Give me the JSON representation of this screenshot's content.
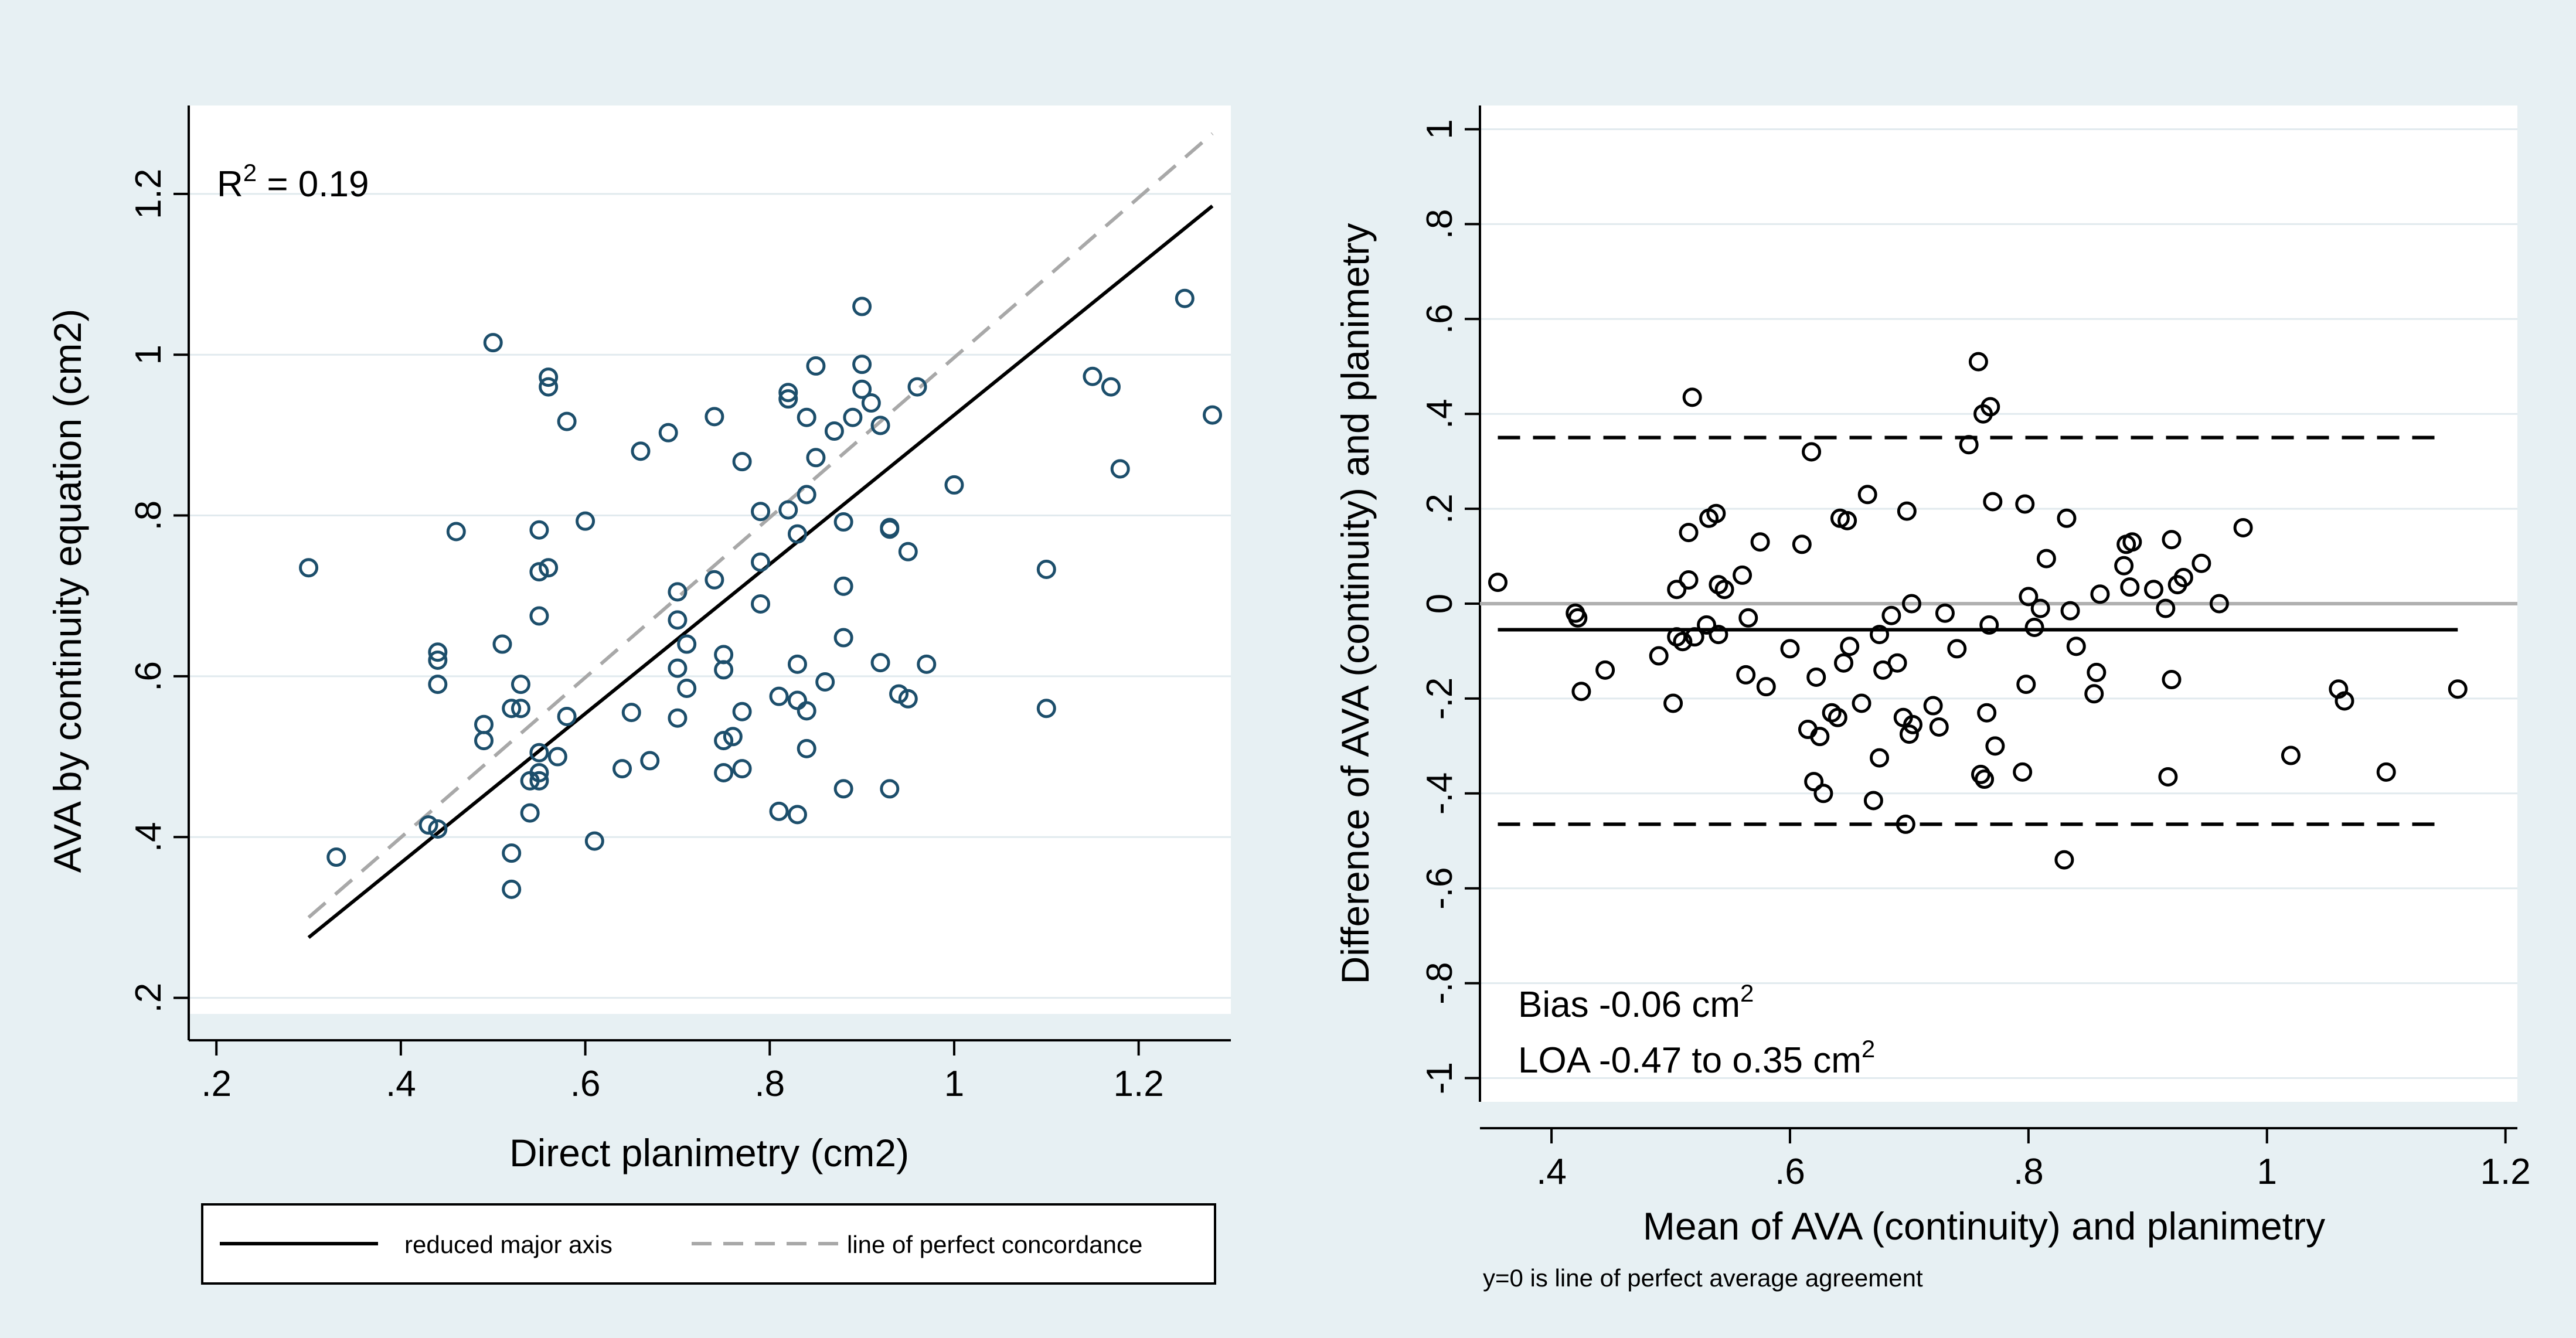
{
  "colors": {
    "outer_background": "#e7f0f3",
    "plot_background": "#ffffff",
    "grid": "#e1eaee",
    "left_marker": "#1c4e6b",
    "right_marker": "#000000",
    "perfect_line": "#a8a8a8",
    "zero_line": "#b0b0b0"
  },
  "chart_data": [
    {
      "type": "scatter",
      "title": "",
      "xlabel": "Direct planimetry (cm2)",
      "ylabel": "AVA by continuity equation (cm2)",
      "xlim": [
        0.17,
        1.3
      ],
      "ylim": [
        0.18,
        1.31
      ],
      "xticks": [
        0.2,
        0.4,
        0.6,
        0.8,
        1.0,
        1.2
      ],
      "xtick_labels": [
        ".2",
        ".4",
        ".6",
        ".8",
        "1",
        "1.2"
      ],
      "yticks": [
        0.2,
        0.4,
        0.6,
        0.8,
        1.0,
        1.2
      ],
      "ytick_labels": [
        ".2",
        ".4",
        ".6",
        ".8",
        "1",
        "1.2"
      ],
      "grid": true,
      "annotation": {
        "prefix": "R",
        "superscript": "2",
        "suffix": " = 0.19"
      },
      "lines": [
        {
          "name": "reduced major axis",
          "style": "solid",
          "color": "#000000",
          "x": [
            0.3,
            1.28
          ],
          "y": [
            0.275,
            1.185
          ]
        },
        {
          "name": "line of perfect concordance",
          "style": "dashed",
          "color": "#a8a8a8",
          "x": [
            0.3,
            1.28
          ],
          "y": [
            0.3,
            1.275
          ]
        }
      ],
      "legend": {
        "placement": "bottom",
        "entries": [
          "reduced major axis",
          "line of perfect concordance"
        ]
      },
      "points": [
        [
          0.3,
          0.735
        ],
        [
          0.33,
          0.375
        ],
        [
          0.43,
          0.415
        ],
        [
          0.44,
          0.41
        ],
        [
          0.44,
          0.59
        ],
        [
          0.44,
          0.62
        ],
        [
          0.44,
          0.63
        ],
        [
          0.46,
          0.78
        ],
        [
          0.49,
          0.54
        ],
        [
          0.49,
          0.52
        ],
        [
          0.5,
          1.015
        ],
        [
          0.51,
          0.64
        ],
        [
          0.52,
          0.38
        ],
        [
          0.52,
          0.335
        ],
        [
          0.52,
          0.56
        ],
        [
          0.53,
          0.56
        ],
        [
          0.53,
          0.59
        ],
        [
          0.54,
          0.43
        ],
        [
          0.54,
          0.47
        ],
        [
          0.55,
          0.48
        ],
        [
          0.55,
          0.47
        ],
        [
          0.55,
          0.505
        ],
        [
          0.55,
          0.675
        ],
        [
          0.55,
          0.73
        ],
        [
          0.55,
          0.782
        ],
        [
          0.56,
          0.735
        ],
        [
          0.56,
          0.96
        ],
        [
          0.56,
          0.972
        ],
        [
          0.57,
          0.5
        ],
        [
          0.58,
          0.55
        ],
        [
          0.58,
          0.917
        ],
        [
          0.6,
          0.793
        ],
        [
          0.61,
          0.395
        ],
        [
          0.64,
          0.485
        ],
        [
          0.65,
          0.555
        ],
        [
          0.66,
          0.88
        ],
        [
          0.67,
          0.495
        ],
        [
          0.69,
          0.903
        ],
        [
          0.7,
          0.548
        ],
        [
          0.7,
          0.61
        ],
        [
          0.7,
          0.67
        ],
        [
          0.7,
          0.705
        ],
        [
          0.71,
          0.585
        ],
        [
          0.71,
          0.64
        ],
        [
          0.74,
          0.72
        ],
        [
          0.74,
          0.923
        ],
        [
          0.75,
          0.48
        ],
        [
          0.75,
          0.52
        ],
        [
          0.75,
          0.608
        ],
        [
          0.75,
          0.627
        ],
        [
          0.76,
          0.525
        ],
        [
          0.77,
          0.485
        ],
        [
          0.77,
          0.556
        ],
        [
          0.77,
          0.867
        ],
        [
          0.79,
          0.69
        ],
        [
          0.79,
          0.742
        ],
        [
          0.79,
          0.805
        ],
        [
          0.81,
          0.432
        ],
        [
          0.81,
          0.575
        ],
        [
          0.82,
          0.807
        ],
        [
          0.82,
          0.945
        ],
        [
          0.82,
          0.953
        ],
        [
          0.83,
          0.428
        ],
        [
          0.83,
          0.57
        ],
        [
          0.83,
          0.615
        ],
        [
          0.83,
          0.777
        ],
        [
          0.84,
          0.51
        ],
        [
          0.84,
          0.557
        ],
        [
          0.84,
          0.826
        ],
        [
          0.84,
          0.922
        ],
        [
          0.85,
          0.872
        ],
        [
          0.85,
          0.986
        ],
        [
          0.86,
          0.593
        ],
        [
          0.87,
          0.905
        ],
        [
          0.88,
          0.46
        ],
        [
          0.88,
          0.648
        ],
        [
          0.88,
          0.712
        ],
        [
          0.88,
          0.792
        ],
        [
          0.89,
          0.922
        ],
        [
          0.9,
          0.957
        ],
        [
          0.9,
          0.988
        ],
        [
          0.9,
          1.06
        ],
        [
          0.91,
          0.94
        ],
        [
          0.92,
          0.617
        ],
        [
          0.92,
          0.912
        ],
        [
          0.93,
          0.46
        ],
        [
          0.93,
          0.783
        ],
        [
          0.93,
          0.785
        ],
        [
          0.94,
          0.578
        ],
        [
          0.95,
          0.572
        ],
        [
          0.95,
          0.755
        ],
        [
          0.96,
          0.96
        ],
        [
          0.97,
          0.615
        ],
        [
          1.0,
          0.838
        ],
        [
          1.1,
          0.56
        ],
        [
          1.1,
          0.733
        ],
        [
          1.15,
          0.973
        ],
        [
          1.17,
          0.96
        ],
        [
          1.18,
          0.858
        ],
        [
          1.25,
          1.07
        ],
        [
          1.28,
          0.925
        ]
      ]
    },
    {
      "type": "scatter",
      "title": "",
      "xlabel": "Mean of AVA (continuity) and planimetry",
      "ylabel": "Difference of AVA (continuity) and planimetry",
      "xlim": [
        0.34,
        1.21
      ],
      "ylim": [
        -1.05,
        1.05
      ],
      "xticks": [
        0.4,
        0.6,
        0.8,
        1.0,
        1.2
      ],
      "xtick_labels": [
        ".4",
        ".6",
        ".8",
        "1",
        "1.2"
      ],
      "yticks": [
        -1.0,
        -0.8,
        -0.6,
        -0.4,
        -0.2,
        0.0,
        0.2,
        0.4,
        0.6,
        0.8,
        1.0
      ],
      "ytick_labels": [
        "-1",
        "-.8",
        "-.6",
        "-.4",
        "-.2",
        "0",
        ".2",
        ".4",
        ".6",
        ".8",
        "1"
      ],
      "grid": true,
      "annotations": [
        {
          "prefix": "Bias -0.06 cm",
          "superscript": "2"
        },
        {
          "prefix": "LOA  -0.47 to o.35 cm",
          "superscript": "2"
        }
      ],
      "note": "y=0 is line of perfect average agreement",
      "lines": [
        {
          "name": "zero",
          "style": "solid",
          "color": "#b0b0b0",
          "x": [
            0.34,
            1.21
          ],
          "y": [
            0.0,
            0.0
          ]
        },
        {
          "name": "bias",
          "style": "solid",
          "color": "#000000",
          "x": [
            0.355,
            1.16
          ],
          "y": [
            -0.055,
            -0.055
          ]
        },
        {
          "name": "upper LOA",
          "style": "dashed",
          "color": "#000000",
          "x": [
            0.355,
            1.15
          ],
          "y": [
            0.35,
            0.35
          ]
        },
        {
          "name": "lower LOA",
          "style": "dashed",
          "color": "#000000",
          "x": [
            0.355,
            1.15
          ],
          "y": [
            -0.465,
            -0.465
          ]
        }
      ],
      "points": [
        [
          0.355,
          0.045
        ],
        [
          0.42,
          -0.02
        ],
        [
          0.422,
          -0.03
        ],
        [
          0.425,
          -0.185
        ],
        [
          0.445,
          -0.14
        ],
        [
          0.49,
          -0.11
        ],
        [
          0.502,
          -0.21
        ],
        [
          0.505,
          -0.07
        ],
        [
          0.505,
          0.03
        ],
        [
          0.51,
          -0.08
        ],
        [
          0.515,
          0.05
        ],
        [
          0.515,
          0.15
        ],
        [
          0.518,
          0.435
        ],
        [
          0.52,
          -0.07
        ],
        [
          0.53,
          -0.045
        ],
        [
          0.532,
          0.18
        ],
        [
          0.538,
          0.19
        ],
        [
          0.54,
          -0.065
        ],
        [
          0.54,
          0.04
        ],
        [
          0.545,
          0.03
        ],
        [
          0.56,
          0.06
        ],
        [
          0.563,
          -0.15
        ],
        [
          0.565,
          -0.03
        ],
        [
          0.575,
          0.13
        ],
        [
          0.58,
          -0.175
        ],
        [
          0.6,
          -0.095
        ],
        [
          0.61,
          0.125
        ],
        [
          0.615,
          -0.265
        ],
        [
          0.618,
          0.32
        ],
        [
          0.62,
          -0.375
        ],
        [
          0.622,
          -0.155
        ],
        [
          0.625,
          -0.28
        ],
        [
          0.628,
          -0.4
        ],
        [
          0.635,
          -0.23
        ],
        [
          0.64,
          -0.24
        ],
        [
          0.642,
          0.18
        ],
        [
          0.645,
          -0.125
        ],
        [
          0.648,
          0.175
        ],
        [
          0.65,
          -0.09
        ],
        [
          0.66,
          -0.21
        ],
        [
          0.665,
          0.23
        ],
        [
          0.67,
          -0.415
        ],
        [
          0.675,
          -0.065
        ],
        [
          0.675,
          -0.325
        ],
        [
          0.678,
          -0.14
        ],
        [
          0.685,
          -0.025
        ],
        [
          0.69,
          -0.125
        ],
        [
          0.695,
          -0.24
        ],
        [
          0.697,
          -0.465
        ],
        [
          0.698,
          0.195
        ],
        [
          0.7,
          -0.275
        ],
        [
          0.702,
          0.0
        ],
        [
          0.703,
          -0.255
        ],
        [
          0.72,
          -0.215
        ],
        [
          0.725,
          -0.26
        ],
        [
          0.73,
          -0.02
        ],
        [
          0.74,
          -0.095
        ],
        [
          0.75,
          0.335
        ],
        [
          0.758,
          0.51
        ],
        [
          0.76,
          -0.36
        ],
        [
          0.762,
          0.4
        ],
        [
          0.763,
          -0.37
        ],
        [
          0.765,
          -0.23
        ],
        [
          0.767,
          -0.045
        ],
        [
          0.768,
          0.415
        ],
        [
          0.77,
          0.215
        ],
        [
          0.772,
          -0.3
        ],
        [
          0.795,
          -0.355
        ],
        [
          0.797,
          0.21
        ],
        [
          0.798,
          -0.17
        ],
        [
          0.8,
          0.015
        ],
        [
          0.805,
          -0.05
        ],
        [
          0.81,
          -0.01
        ],
        [
          0.815,
          0.095
        ],
        [
          0.83,
          -0.54
        ],
        [
          0.832,
          0.18
        ],
        [
          0.835,
          -0.015
        ],
        [
          0.84,
          -0.09
        ],
        [
          0.855,
          -0.19
        ],
        [
          0.857,
          -0.145
        ],
        [
          0.86,
          0.02
        ],
        [
          0.88,
          0.08
        ],
        [
          0.882,
          0.125
        ],
        [
          0.885,
          0.035
        ],
        [
          0.887,
          0.13
        ],
        [
          0.905,
          0.03
        ],
        [
          0.915,
          -0.01
        ],
        [
          0.917,
          -0.365
        ],
        [
          0.92,
          -0.16
        ],
        [
          0.92,
          0.135
        ],
        [
          0.925,
          0.04
        ],
        [
          0.93,
          0.055
        ],
        [
          0.945,
          0.085
        ],
        [
          0.96,
          0.0
        ],
        [
          0.98,
          0.16
        ],
        [
          1.02,
          -0.32
        ],
        [
          1.06,
          -0.18
        ],
        [
          1.065,
          -0.205
        ],
        [
          1.1,
          -0.355
        ],
        [
          1.16,
          -0.18
        ]
      ]
    }
  ]
}
